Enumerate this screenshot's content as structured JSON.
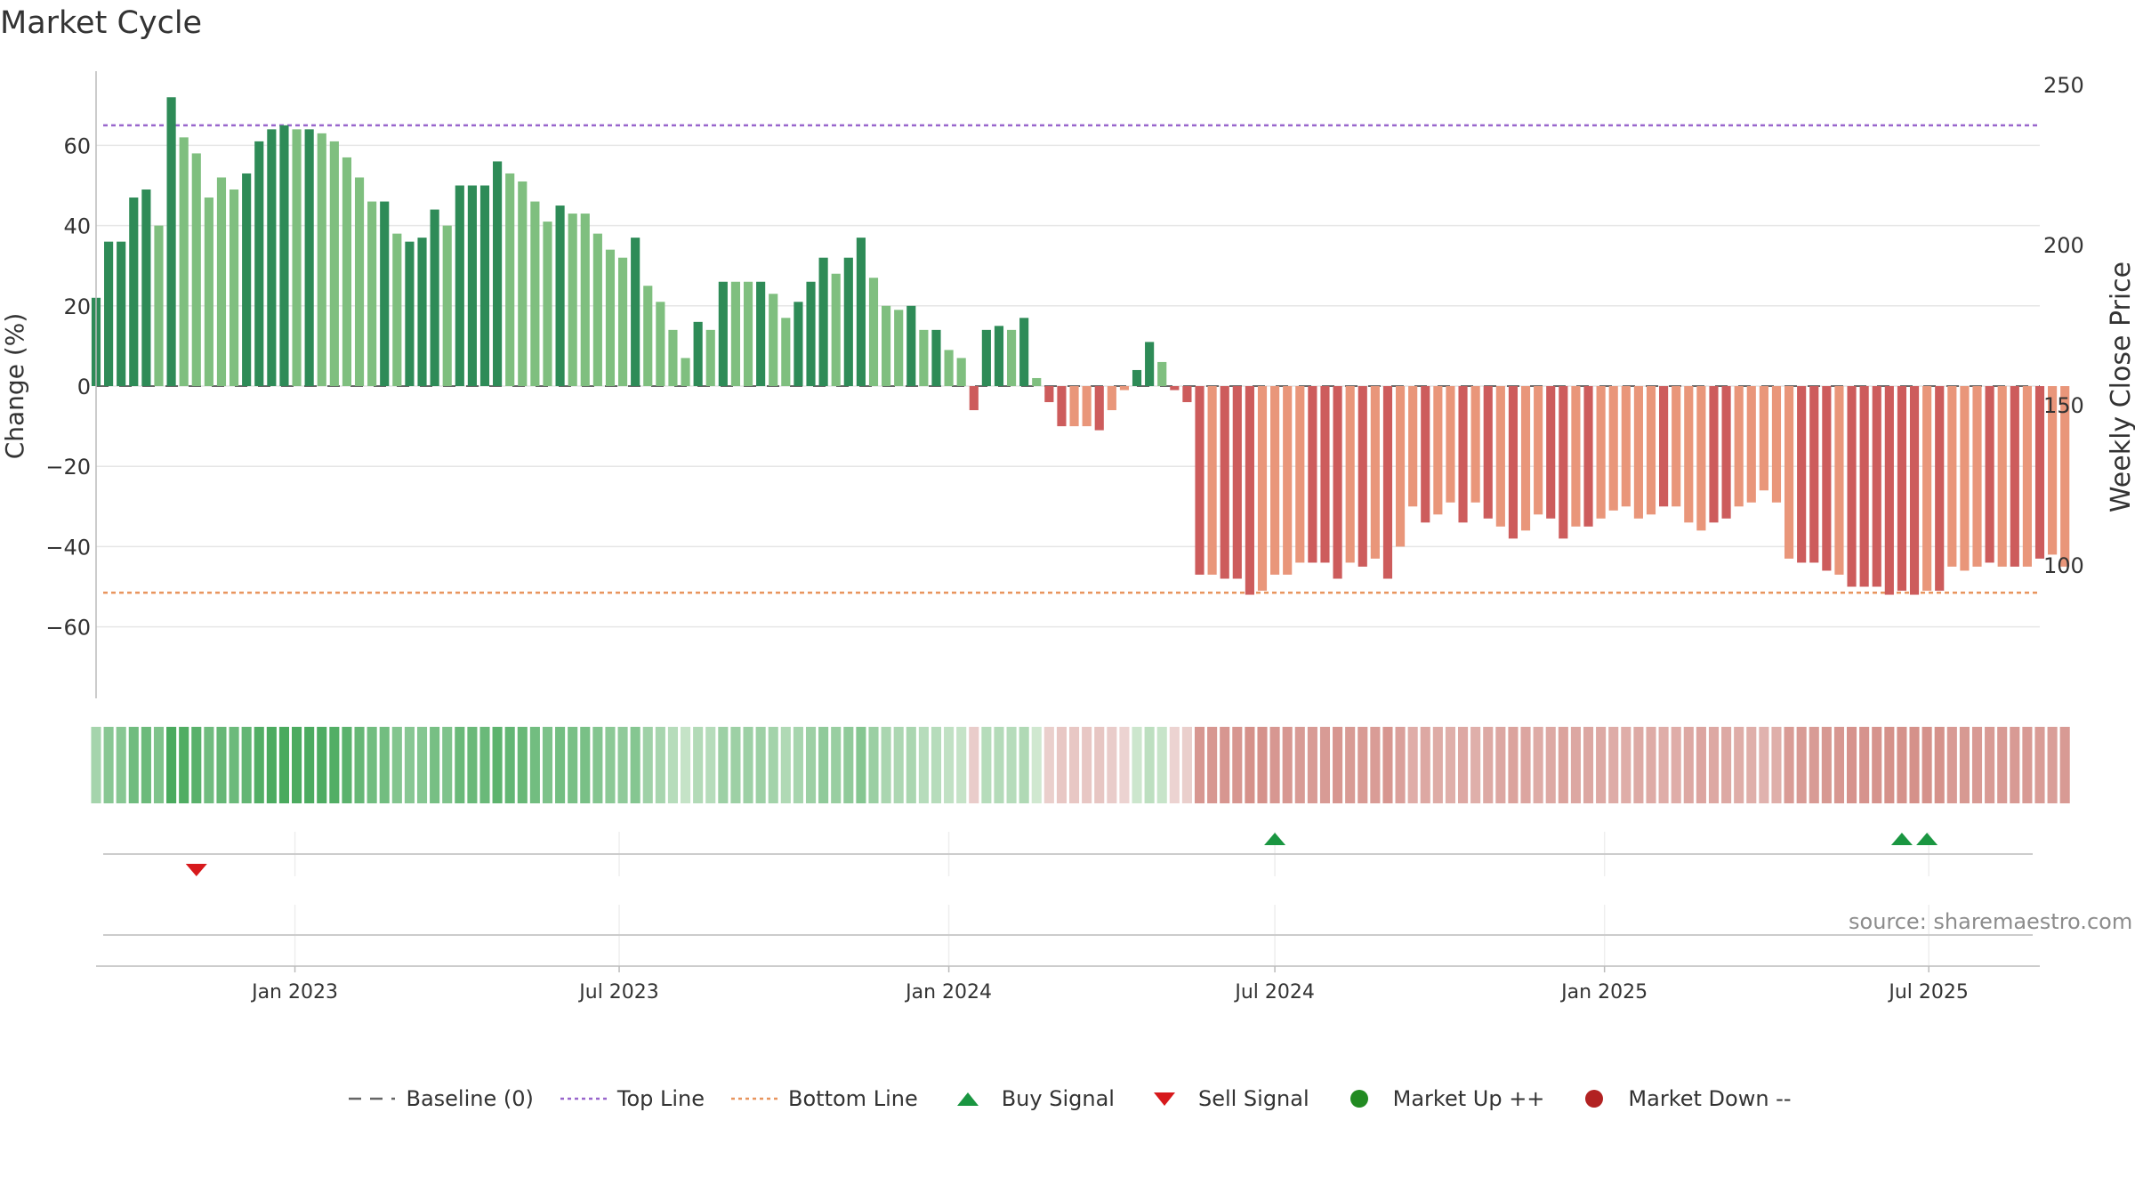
{
  "title": "Market Cycle",
  "source": "source: sharemaestro.com",
  "legend": [
    {
      "key": "baseline",
      "label": "Baseline (0)",
      "symbol": "dashed",
      "color": "#666666"
    },
    {
      "key": "top",
      "label": "Top Line",
      "symbol": "dotted",
      "color": "#9966cc"
    },
    {
      "key": "bottom",
      "label": "Bottom Line",
      "symbol": "dotted",
      "color": "#e8955e"
    },
    {
      "key": "buy",
      "label": "Buy Signal",
      "symbol": "triangle-up",
      "color": "#1a9641"
    },
    {
      "key": "sell",
      "label": "Sell Signal",
      "symbol": "triangle-down",
      "color": "#d7191c"
    },
    {
      "key": "up",
      "label": "Market Up ++",
      "symbol": "dot",
      "color": "#228b22"
    },
    {
      "key": "down",
      "label": "Market Down --",
      "symbol": "dot",
      "color": "#b22222"
    }
  ],
  "colors": {
    "pos_strong": "#2e8b57",
    "pos_light": "#7fbf7f",
    "neg_strong": "#cd5c5c",
    "neg_light": "#e9967a",
    "grid": "#e6e6e6",
    "axis": "#bbbbbb",
    "text": "#333333"
  },
  "chart_data": {
    "type": "bar",
    "ylabel": "Change (%)",
    "y2label": "Weekly Close Price",
    "ylim": [
      -78,
      78
    ],
    "yticks": [
      60,
      40,
      20,
      0,
      -20,
      -40,
      -60
    ],
    "ytick_labels": [
      "60",
      "40",
      "20",
      "0",
      "−20",
      "−40",
      "−60"
    ],
    "y2lim": [
      50,
      260
    ],
    "y2ticks": [
      250,
      200,
      150,
      100
    ],
    "y2tick_labels": [
      "250",
      "200",
      "150",
      "100"
    ],
    "x_start": "2022-09-12",
    "x_end": "2025-09-01",
    "xticks": [
      "2023-01-01",
      "2023-07-01",
      "2024-01-01",
      "2024-07-01",
      "2025-01-01",
      "2025-07-01"
    ],
    "xtick_labels": [
      "Jan 2023",
      "Jul 2023",
      "Jan 2024",
      "Jul 2024",
      "Jan 2025",
      "Jul 2025"
    ],
    "top_line": 65,
    "bottom_line": -51.5,
    "baseline": 0,
    "week_start": "2022-09-12",
    "values": [
      22,
      36,
      36,
      47,
      49,
      40,
      72,
      62,
      58,
      47,
      52,
      49,
      53,
      61,
      64,
      65,
      64,
      64,
      63,
      61,
      57,
      52,
      46,
      46,
      38,
      36,
      37,
      44,
      40,
      50,
      50,
      50,
      56,
      53,
      51,
      46,
      41,
      45,
      43,
      43,
      38,
      34,
      32,
      37,
      25,
      21,
      14,
      7,
      16,
      14,
      26,
      26,
      26,
      26,
      23,
      17,
      21,
      26,
      32,
      28,
      32,
      37,
      27,
      20,
      19,
      20,
      14,
      14,
      9,
      7,
      -6,
      14,
      15,
      14,
      17,
      2,
      -4,
      -10,
      -10,
      -10,
      -11,
      -6,
      -1,
      4,
      11,
      6,
      -1,
      -4,
      -47,
      -47,
      -48,
      -48,
      -52,
      -51,
      -47,
      -47,
      -44,
      -44,
      -44,
      -48,
      -44,
      -45,
      -43,
      -48,
      -40,
      -30,
      -34,
      -32,
      -29,
      -34,
      -29,
      -33,
      -35,
      -38,
      -36,
      -32,
      -33,
      -38,
      -35,
      -35,
      -33,
      -31,
      -30,
      -33,
      -32,
      -30,
      -30,
      -34,
      -36,
      -34,
      -33,
      -30,
      -29,
      -26,
      -29,
      -43,
      -44,
      -44,
      -46,
      -47,
      -50,
      -50,
      -50,
      -52,
      -51,
      -52,
      -51,
      -51,
      -45,
      -46,
      -45,
      -44,
      -45,
      -45,
      -45,
      -43,
      -42,
      -45
    ],
    "shades": [
      1,
      1,
      1,
      1,
      1,
      0,
      1,
      0,
      0,
      0,
      0,
      0,
      1,
      1,
      1,
      1,
      0,
      1,
      0,
      0,
      0,
      0,
      0,
      1,
      0,
      1,
      1,
      1,
      0,
      1,
      1,
      1,
      1,
      0,
      0,
      0,
      0,
      1,
      0,
      0,
      0,
      0,
      0,
      1,
      0,
      0,
      0,
      0,
      1,
      0,
      1,
      0,
      0,
      1,
      0,
      0,
      1,
      1,
      1,
      0,
      1,
      1,
      0,
      0,
      0,
      1,
      0,
      1,
      0,
      0,
      1,
      1,
      1,
      0,
      1,
      0,
      1,
      1,
      0,
      0,
      1,
      0,
      0,
      1,
      1,
      0,
      1,
      1,
      1,
      0,
      1,
      1,
      1,
      0,
      0,
      0,
      0,
      1,
      1,
      1,
      0,
      1,
      0,
      1,
      0,
      0,
      1,
      0,
      0,
      1,
      0,
      1,
      0,
      1,
      0,
      0,
      1,
      1,
      0,
      1,
      0,
      0,
      0,
      0,
      0,
      1,
      0,
      0,
      0,
      1,
      1,
      0,
      0,
      0,
      0,
      0,
      1,
      1,
      1,
      0,
      1,
      1,
      1,
      1,
      1,
      1,
      0,
      1,
      0,
      0,
      0,
      1,
      0,
      1,
      0,
      1,
      0,
      0,
      0,
      1
    ],
    "buy_signals": [
      "2024-07-01",
      "2025-06-16",
      "2025-06-30"
    ],
    "sell_signals": [
      "2022-11-07"
    ]
  }
}
